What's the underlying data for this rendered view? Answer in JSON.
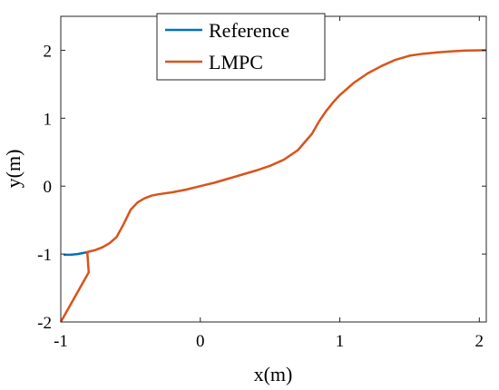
{
  "chart_data": {
    "type": "line",
    "title": "",
    "xlabel": "x(m)",
    "ylabel": "y(m)",
    "xlim": [
      -1,
      2.05
    ],
    "ylim": [
      -2,
      2.5
    ],
    "xticks": [
      -1,
      0,
      1,
      2
    ],
    "yticks": [
      -2,
      -1,
      0,
      1,
      2
    ],
    "xtick_labels": [
      "-1",
      "0",
      "1",
      "2"
    ],
    "ytick_labels": [
      "-2",
      "-1",
      "0",
      "1",
      "2"
    ],
    "grid": false,
    "legend_position": "top-center",
    "series": [
      {
        "name": "Reference",
        "color": "#0072BD",
        "points": [
          [
            -0.98,
            -1.01
          ],
          [
            -0.93,
            -1.01
          ],
          [
            -0.88,
            -1.0
          ],
          [
            -0.83,
            -0.98
          ],
          [
            -0.8,
            -0.97
          ]
        ]
      },
      {
        "name": "LMPC",
        "color": "#D95319",
        "points": [
          [
            -1.0,
            -2.0
          ],
          [
            -0.8,
            -1.27
          ],
          [
            -0.81,
            -0.97
          ],
          [
            -0.75,
            -0.94
          ],
          [
            -0.7,
            -0.9
          ],
          [
            -0.65,
            -0.84
          ],
          [
            -0.6,
            -0.75
          ],
          [
            -0.55,
            -0.56
          ],
          [
            -0.5,
            -0.35
          ],
          [
            -0.45,
            -0.24
          ],
          [
            -0.4,
            -0.18
          ],
          [
            -0.35,
            -0.14
          ],
          [
            -0.3,
            -0.12
          ],
          [
            -0.2,
            -0.09
          ],
          [
            -0.1,
            -0.05
          ],
          [
            0.0,
            0.0
          ],
          [
            0.1,
            0.05
          ],
          [
            0.2,
            0.11
          ],
          [
            0.3,
            0.17
          ],
          [
            0.4,
            0.23
          ],
          [
            0.5,
            0.3
          ],
          [
            0.6,
            0.39
          ],
          [
            0.7,
            0.53
          ],
          [
            0.75,
            0.65
          ],
          [
            0.8,
            0.77
          ],
          [
            0.85,
            0.95
          ],
          [
            0.9,
            1.1
          ],
          [
            0.95,
            1.23
          ],
          [
            1.0,
            1.34
          ],
          [
            1.1,
            1.52
          ],
          [
            1.2,
            1.66
          ],
          [
            1.3,
            1.77
          ],
          [
            1.4,
            1.86
          ],
          [
            1.5,
            1.92
          ],
          [
            1.6,
            1.95
          ],
          [
            1.7,
            1.97
          ],
          [
            1.8,
            1.985
          ],
          [
            1.9,
            1.995
          ],
          [
            2.05,
            2.0
          ]
        ]
      }
    ]
  }
}
